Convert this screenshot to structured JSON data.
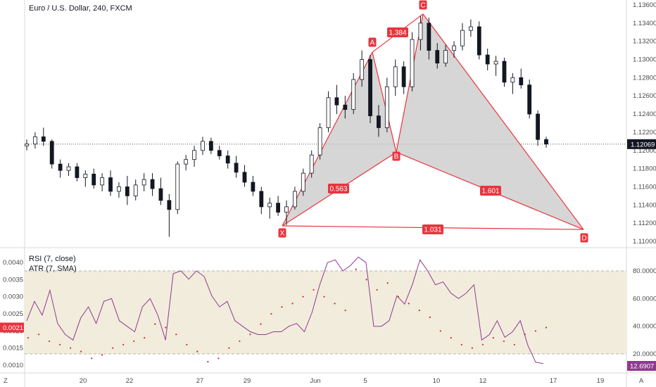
{
  "header": {
    "symbol_title": "Euro / U.S. Dollar, 240, FXCM"
  },
  "colors": {
    "up": "#131722",
    "down": "#131722",
    "pattern_line": "#e8353e",
    "pattern_fill": "#c8c8c8",
    "rsi_line": "#8e3b8e",
    "atr_dots": "#cc2a2a",
    "band_fill": "#f2ecdc",
    "price_tag_bg": "#131722",
    "left_tag_bg": "#e8353e",
    "rsi_tag_bg": "#8e3b8e"
  },
  "price_axis": {
    "ticks": [
      "1.13600",
      "1.13400",
      "1.13200",
      "1.13000",
      "1.12800",
      "1.12600",
      "1.12400",
      "1.12200",
      "1.12000",
      "1.11800",
      "1.11600",
      "1.11400",
      "1.11200",
      "1.11000"
    ],
    "current_price_label": "1.12069",
    "current_price": 1.12069
  },
  "lower_axes": {
    "left_ticks": [
      "0.0040",
      "0.0035",
      "0.0030",
      "0.0025",
      "0.0020",
      "0.0015",
      "0.0010"
    ],
    "right_ticks": [
      "80.0000",
      "60.0000",
      "40.0000",
      "20.0000"
    ],
    "atr_value_label": "0.0021",
    "rsi_value_label": "12.6907",
    "rsi_title": "RSI (7, close)",
    "atr_title": "ATR (7, SMA)"
  },
  "x_axis": {
    "labels": [
      "20",
      "22",
      "27",
      "29",
      "Jun",
      "5",
      "10",
      "12",
      "17",
      "19"
    ],
    "corner_left": "Z",
    "corner_right": "A"
  },
  "chart_data": [
    {
      "type": "candlestick",
      "title": "Euro / U.S. Dollar, 240, FXCM",
      "ylim": [
        1.1095,
        1.1365
      ],
      "candles_approx": [
        [
          1.1205,
          1.1212,
          1.12,
          1.1207
        ],
        [
          1.1207,
          1.122,
          1.1202,
          1.1215
        ],
        [
          1.1215,
          1.1225,
          1.1205,
          1.121
        ],
        [
          1.121,
          1.1212,
          1.118,
          1.1185
        ],
        [
          1.1185,
          1.119,
          1.117,
          1.1178
        ],
        [
          1.1178,
          1.1186,
          1.1172,
          1.1182
        ],
        [
          1.1182,
          1.1186,
          1.1166,
          1.117
        ],
        [
          1.117,
          1.1178,
          1.116,
          1.1174
        ],
        [
          1.1174,
          1.118,
          1.1158,
          1.1162
        ],
        [
          1.1162,
          1.1175,
          1.1155,
          1.117
        ],
        [
          1.117,
          1.1178,
          1.115,
          1.1155
        ],
        [
          1.1155,
          1.1165,
          1.1148,
          1.116
        ],
        [
          1.116,
          1.1172,
          1.114,
          1.115
        ],
        [
          1.115,
          1.1168,
          1.1145,
          1.1162
        ],
        [
          1.1162,
          1.1175,
          1.1155,
          1.1168
        ],
        [
          1.1168,
          1.1175,
          1.115,
          1.1158
        ],
        [
          1.1158,
          1.117,
          1.114,
          1.1145
        ],
        [
          1.1145,
          1.1152,
          1.1105,
          1.1135
        ],
        [
          1.1135,
          1.1188,
          1.113,
          1.1185
        ],
        [
          1.1185,
          1.1195,
          1.1178,
          1.119
        ],
        [
          1.119,
          1.1205,
          1.1182,
          1.12
        ],
        [
          1.12,
          1.1215,
          1.1195,
          1.121
        ],
        [
          1.121,
          1.1214,
          1.1196,
          1.12
        ],
        [
          1.12,
          1.1205,
          1.119,
          1.1194
        ],
        [
          1.1194,
          1.12,
          1.118,
          1.1186
        ],
        [
          1.1186,
          1.1194,
          1.117,
          1.1176
        ],
        [
          1.1176,
          1.1184,
          1.116,
          1.1165
        ],
        [
          1.1165,
          1.1172,
          1.115,
          1.1155
        ],
        [
          1.1155,
          1.116,
          1.113,
          1.1138
        ],
        [
          1.1138,
          1.1148,
          1.1125,
          1.1142
        ],
        [
          1.1142,
          1.115,
          1.1128,
          1.1132
        ],
        [
          1.1132,
          1.1145,
          1.1118,
          1.1138
        ],
        [
          1.1138,
          1.116,
          1.1135,
          1.1155
        ],
        [
          1.1155,
          1.118,
          1.115,
          1.1175
        ],
        [
          1.1175,
          1.12,
          1.117,
          1.1195
        ],
        [
          1.1195,
          1.123,
          1.119,
          1.1225
        ],
        [
          1.1225,
          1.1265,
          1.122,
          1.1258
        ],
        [
          1.1258,
          1.1272,
          1.124,
          1.125
        ],
        [
          1.125,
          1.126,
          1.1235,
          1.1245
        ],
        [
          1.1245,
          1.1285,
          1.124,
          1.1278
        ],
        [
          1.1278,
          1.131,
          1.127,
          1.13
        ],
        [
          1.13,
          1.1305,
          1.123,
          1.1238
        ],
        [
          1.1238,
          1.125,
          1.1215,
          1.1225
        ],
        [
          1.1225,
          1.128,
          1.122,
          1.127
        ],
        [
          1.127,
          1.13,
          1.126,
          1.1292
        ],
        [
          1.1292,
          1.1298,
          1.1262,
          1.127
        ],
        [
          1.127,
          1.133,
          1.1265,
          1.1322
        ],
        [
          1.1322,
          1.1348,
          1.131,
          1.134
        ],
        [
          1.134,
          1.1346,
          1.13,
          1.131
        ],
        [
          1.131,
          1.1318,
          1.129,
          1.1296
        ],
        [
          1.1296,
          1.1316,
          1.1292,
          1.131
        ],
        [
          1.131,
          1.132,
          1.1302,
          1.1315
        ],
        [
          1.1315,
          1.134,
          1.131,
          1.1332
        ],
        [
          1.1332,
          1.1344,
          1.1325,
          1.1336
        ],
        [
          1.1336,
          1.1342,
          1.13,
          1.1305
        ],
        [
          1.1305,
          1.1312,
          1.1288,
          1.1295
        ],
        [
          1.1295,
          1.1304,
          1.1282,
          1.1298
        ],
        [
          1.1298,
          1.1302,
          1.127,
          1.1275
        ],
        [
          1.1275,
          1.1285,
          1.1262,
          1.128
        ],
        [
          1.128,
          1.129,
          1.1268,
          1.1272
        ],
        [
          1.1272,
          1.1278,
          1.1235,
          1.124
        ],
        [
          1.124,
          1.1244,
          1.1205,
          1.1212
        ],
        [
          1.1212,
          1.1215,
          1.1203,
          1.1207
        ]
      ],
      "harmonic_points": [
        {
          "name": "X",
          "value": 1.1117
        },
        {
          "name": "A",
          "value": 1.1308
        },
        {
          "name": "B",
          "value": 1.1198
        },
        {
          "name": "C",
          "value": 1.135
        },
        {
          "name": "D",
          "value": 1.1113
        }
      ],
      "ratios": [
        "0.563",
        "1.384",
        "1.601",
        "1.031"
      ]
    },
    {
      "type": "line",
      "series": [
        {
          "name": "RSI (7, close)",
          "ylim": [
            0,
            100
          ],
          "values": [
            44,
            58,
            48,
            66,
            42,
            34,
            30,
            46,
            54,
            42,
            58,
            60,
            44,
            40,
            36,
            54,
            60,
            48,
            30,
            78,
            80,
            74,
            80,
            76,
            62,
            54,
            58,
            44,
            40,
            36,
            34,
            34,
            36,
            36,
            40,
            42,
            36,
            50,
            70,
            86,
            88,
            80,
            84,
            90,
            86,
            40,
            40,
            44,
            62,
            56,
            70,
            88,
            80,
            70,
            72,
            64,
            60,
            64,
            70,
            30,
            34,
            44,
            32,
            36,
            44,
            26,
            14,
            13
          ],
          "last": 12.6907
        },
        {
          "name": "ATR (7, SMA)",
          "ylim": [
            0.0009,
            0.0043
          ],
          "values": [
            0.0018,
            0.0019,
            0.0017,
            0.0016,
            0.0015,
            0.0014,
            0.0012,
            0.0013,
            0.0015,
            0.0016,
            0.0017,
            0.0018,
            0.0022,
            0.0021,
            0.0019,
            0.0016,
            0.0014,
            0.0011,
            0.0012,
            0.0015,
            0.0017,
            0.0019,
            0.0022,
            0.0025,
            0.0027,
            0.0028,
            0.003,
            0.0032,
            0.003,
            0.0028,
            0.0026,
            0.0038,
            0.0035,
            0.0032,
            0.0034,
            0.003,
            0.0028,
            0.0026,
            0.0024,
            0.002,
            0.0018,
            0.0016,
            0.0015,
            0.0016,
            0.0018,
            0.0017,
            0.0016,
            0.0019,
            0.002,
            0.0021
          ],
          "last": 0.0021
        }
      ]
    }
  ]
}
